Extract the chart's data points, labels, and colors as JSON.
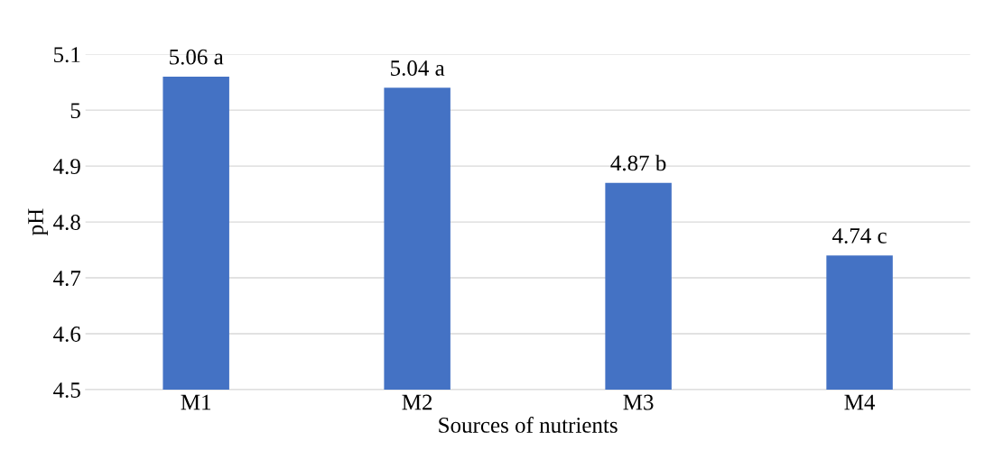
{
  "chart_data": {
    "type": "bar",
    "xlabel": "Sources of nutrients",
    "ylabel": "pH",
    "categories": [
      "M1",
      "M2",
      "M3",
      "M4"
    ],
    "values": [
      5.06,
      5.04,
      4.87,
      4.74
    ],
    "value_labels": [
      "5.06 a",
      "5.04 a",
      "4.87 b",
      "4.74 c"
    ],
    "color": "#4472c4",
    "ylim": [
      4.5,
      5.1
    ],
    "yticks": [
      4.5,
      4.6,
      4.7,
      4.8,
      4.9,
      5,
      5.1
    ],
    "grid": "y",
    "legend": false
  }
}
